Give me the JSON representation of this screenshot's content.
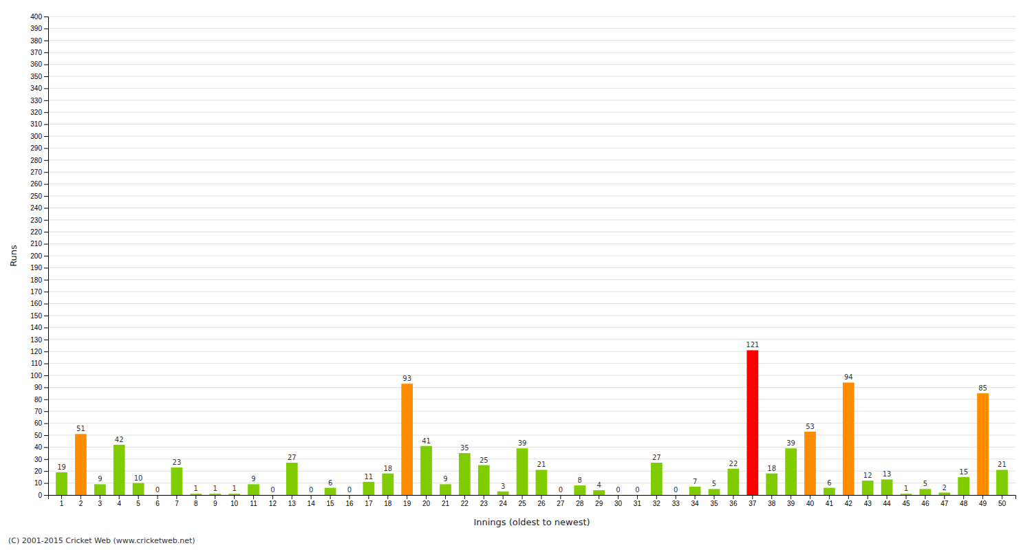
{
  "chart_data": {
    "type": "bar",
    "categories": [
      1,
      2,
      3,
      4,
      5,
      6,
      7,
      8,
      9,
      10,
      11,
      12,
      13,
      14,
      15,
      16,
      17,
      18,
      19,
      20,
      21,
      22,
      23,
      24,
      25,
      26,
      27,
      28,
      29,
      30,
      31,
      32,
      33,
      34,
      35,
      36,
      37,
      38,
      39,
      40,
      41,
      42,
      43,
      44,
      45,
      46,
      47,
      48,
      49,
      50
    ],
    "values": [
      19,
      51,
      9,
      42,
      10,
      0,
      23,
      1,
      1,
      1,
      9,
      0,
      27,
      0,
      6,
      0,
      11,
      18,
      93,
      41,
      9,
      35,
      25,
      3,
      39,
      21,
      0,
      8,
      4,
      0,
      0,
      27,
      0,
      7,
      5,
      22,
      121,
      18,
      39,
      53,
      6,
      94,
      12,
      13,
      1,
      5,
      2,
      15,
      85,
      21
    ],
    "colors": [
      "#80cc00",
      "#ff8c00",
      "#80cc00",
      "#80cc00",
      "#80cc00",
      "#80cc00",
      "#80cc00",
      "#80cc00",
      "#80cc00",
      "#80cc00",
      "#80cc00",
      "#80cc00",
      "#80cc00",
      "#80cc00",
      "#80cc00",
      "#80cc00",
      "#80cc00",
      "#80cc00",
      "#ff8c00",
      "#80cc00",
      "#80cc00",
      "#80cc00",
      "#80cc00",
      "#80cc00",
      "#80cc00",
      "#80cc00",
      "#80cc00",
      "#80cc00",
      "#80cc00",
      "#80cc00",
      "#80cc00",
      "#80cc00",
      "#80cc00",
      "#80cc00",
      "#80cc00",
      "#80cc00",
      "#ff0000",
      "#80cc00",
      "#80cc00",
      "#ff8c00",
      "#80cc00",
      "#ff8c00",
      "#80cc00",
      "#80cc00",
      "#80cc00",
      "#80cc00",
      "#80cc00",
      "#80cc00",
      "#ff8c00",
      "#80cc00"
    ],
    "xlabel": "Innings (oldest to newest)",
    "ylabel": "Runs",
    "ylim": [
      0,
      400
    ],
    "yticks": [
      0,
      10,
      20,
      30,
      40,
      50,
      60,
      70,
      80,
      90,
      100,
      110,
      120,
      130,
      140,
      150,
      160,
      170,
      180,
      190,
      200,
      210,
      220,
      230,
      240,
      250,
      260,
      270,
      280,
      290,
      300,
      310,
      320,
      330,
      340,
      350,
      360,
      370,
      380,
      390,
      400
    ],
    "grid": true,
    "data_labels": true,
    "annotations": [
      "(C) 2001-2015 Cricket Web (www.cricketweb.net)"
    ]
  }
}
